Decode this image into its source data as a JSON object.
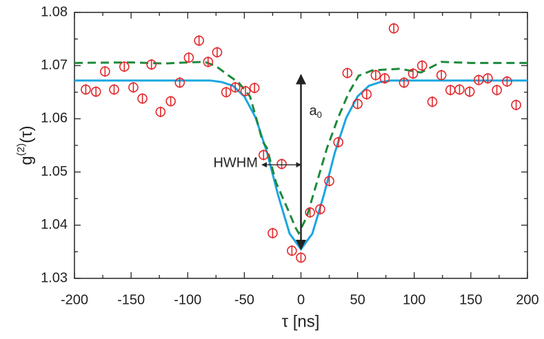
{
  "chart_data": {
    "type": "scatter",
    "xlabel": "τ [ns]",
    "ylabel": [
      "g",
      "(2)",
      "(τ)"
    ],
    "xlim": [
      -200,
      200
    ],
    "ylim": [
      1.03,
      1.08
    ],
    "xticks": [
      -200,
      -150,
      -100,
      -50,
      0,
      50,
      100,
      150,
      200
    ],
    "xminorticks": [
      -175,
      -125,
      -75,
      -25,
      25,
      75,
      125,
      175
    ],
    "yticks": [
      1.03,
      1.04,
      1.05,
      1.06,
      1.07,
      1.08
    ],
    "yminorticks": [
      1.035,
      1.045,
      1.055,
      1.065,
      1.075
    ],
    "annotations": {
      "a0": [
        "a",
        "0"
      ],
      "hwhm": "HWHM"
    },
    "series": [
      {
        "type": "errorbar",
        "color": "#e3262a",
        "error": 0.001,
        "x": [
          -190,
          -181,
          -173,
          -165,
          -156,
          -148,
          -140,
          -132,
          -124,
          -115,
          -107,
          -99,
          -90,
          -82,
          -74,
          -66,
          -58,
          -49,
          -41,
          -33,
          -25,
          -17,
          -8,
          0,
          8,
          17,
          25,
          33,
          41,
          50,
          58,
          66,
          74,
          82,
          91,
          99,
          107,
          116,
          124,
          132,
          140,
          149,
          157,
          165,
          173,
          182,
          190
        ],
        "values": [
          1.0655,
          1.0651,
          1.0689,
          1.0655,
          1.0698,
          1.0659,
          1.0638,
          1.0702,
          1.0613,
          1.0633,
          1.0668,
          1.0715,
          1.0747,
          1.0707,
          1.0725,
          1.065,
          1.0659,
          1.0652,
          1.0658,
          1.0532,
          1.0385,
          1.0515,
          1.0352,
          1.0339,
          1.0424,
          1.043,
          1.0483,
          1.0556,
          1.0686,
          1.0628,
          1.0646,
          1.0682,
          1.0676,
          1.077,
          1.0668,
          1.0685,
          1.07,
          1.0632,
          1.0682,
          1.0654,
          1.0655,
          1.0651,
          1.0673,
          1.0676,
          1.0654,
          1.067,
          1.0626
        ]
      },
      {
        "type": "line",
        "color": "#1aa6e0",
        "dashed": false,
        "x": [
          -200,
          -80,
          -70,
          -60,
          -50,
          -40,
          -30,
          -20,
          -10,
          0,
          10,
          20,
          30,
          40,
          50,
          60,
          70,
          80,
          200
        ],
        "values": [
          1.0672,
          1.0672,
          1.0669,
          1.0662,
          1.0642,
          1.0602,
          1.0537,
          1.0455,
          1.0384,
          1.0355,
          1.0384,
          1.0455,
          1.0537,
          1.0602,
          1.0642,
          1.0662,
          1.0669,
          1.0672,
          1.0672
        ]
      },
      {
        "type": "line",
        "color": "#1b8a3a",
        "dashed": true,
        "x": [
          -200,
          -150,
          -120,
          -100,
          -85,
          -75,
          -65,
          -55,
          -45,
          -38,
          -34,
          -30,
          -22,
          -10,
          -5,
          -2,
          5,
          14,
          23,
          33,
          42,
          51,
          63,
          87,
          106,
          124,
          150,
          200
        ],
        "values": [
          1.0705,
          1.0706,
          1.0704,
          1.0706,
          1.0707,
          1.0699,
          1.0683,
          1.0668,
          1.0642,
          1.059,
          1.0558,
          1.0545,
          1.048,
          1.0422,
          1.0396,
          1.0385,
          1.0415,
          1.048,
          1.0545,
          1.0603,
          1.0648,
          1.0681,
          1.0691,
          1.0694,
          1.0687,
          1.0707,
          1.0705,
          1.0705
        ]
      }
    ]
  }
}
